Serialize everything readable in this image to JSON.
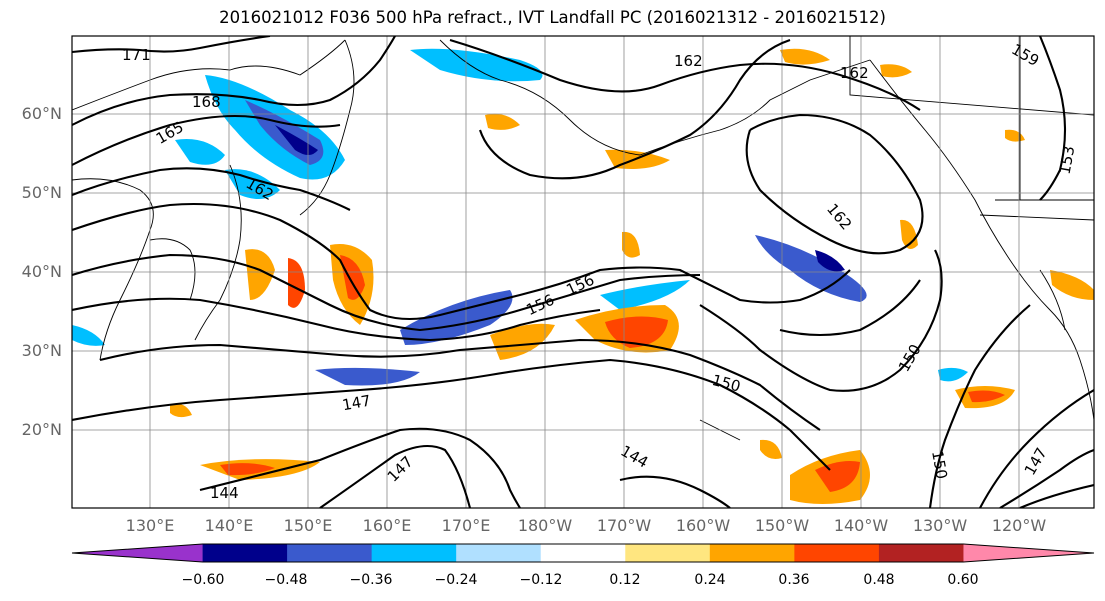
{
  "title": "2016021012 F036 500 hPa refract., IVT Landfall PC (2016021312 - 2016021512)",
  "latitude_labels": [
    "60°N",
    "50°N",
    "40°N",
    "30°N",
    "20°N"
  ],
  "longitude_labels": [
    "130°E",
    "140°E",
    "150°E",
    "160°E",
    "170°E",
    "180°W",
    "170°W",
    "160°W",
    "150°W",
    "140°W",
    "130°W",
    "120°W"
  ],
  "colorbar": {
    "colors": [
      "#9932cc",
      "#00008b",
      "#3a5acd",
      "#00bfff",
      "#b0e0ff",
      "#ffffff",
      "#ffe680",
      "#ffa500",
      "#ff4500",
      "#b22222",
      "#ff88aa"
    ],
    "tick_labels": [
      "−0.60",
      "−0.48",
      "−0.36",
      "−0.24",
      "−0.12",
      "0.12",
      "0.24",
      "0.36",
      "0.48",
      "0.60"
    ]
  },
  "contour_labels": [
    "171",
    "168",
    "165",
    "162",
    "162",
    "162",
    "162",
    "159",
    "156",
    "156",
    "153",
    "150",
    "150",
    "150",
    "147",
    "147",
    "147",
    "144",
    "144"
  ]
}
